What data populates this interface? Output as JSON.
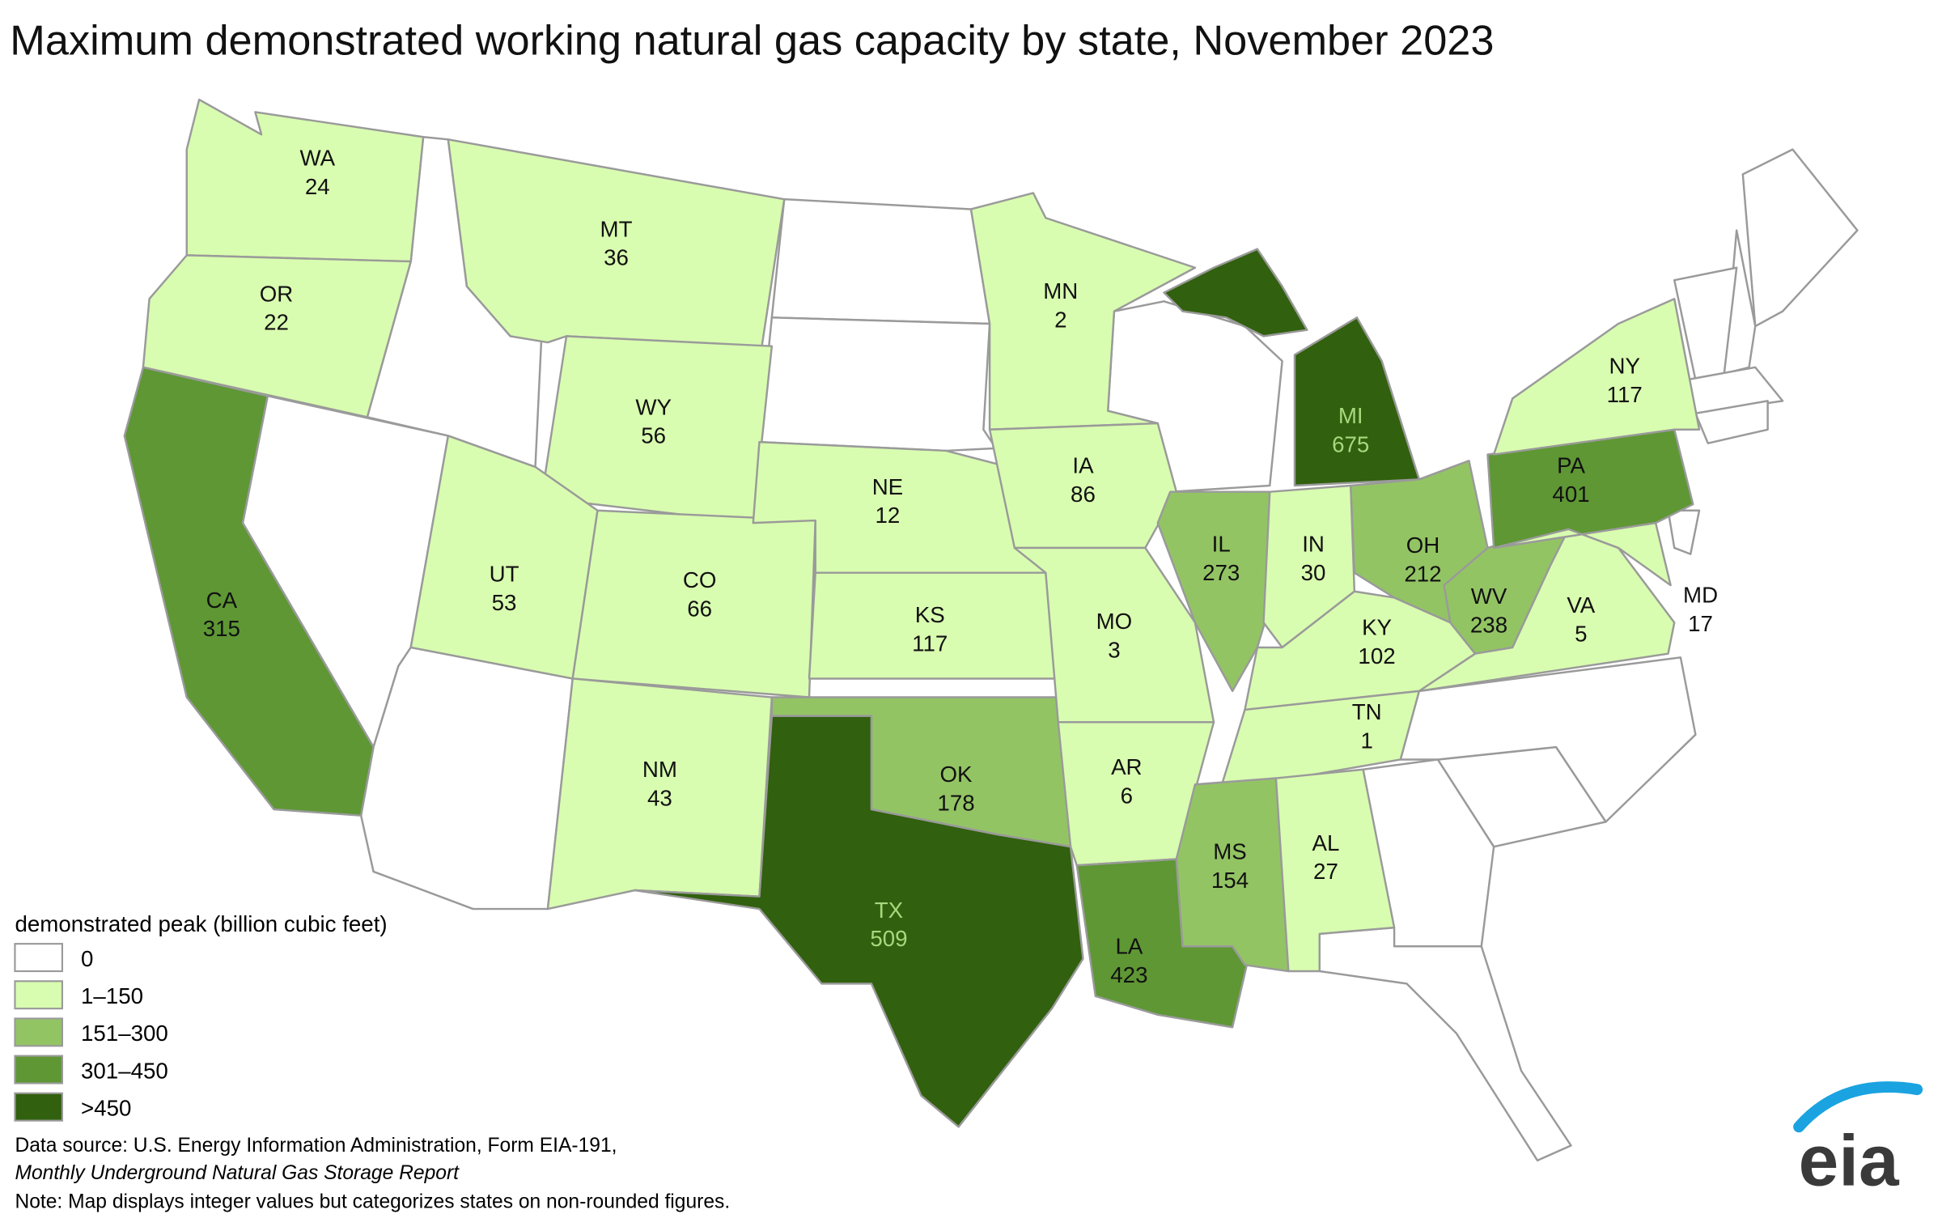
{
  "title": "Maximum demonstrated working natural gas capacity by state, November 2023",
  "legend": {
    "title": "demonstrated peak (billion cubic feet)",
    "classes": [
      {
        "label": "0",
        "color": "#ffffff"
      },
      {
        "label": "1–150",
        "color": "#d9fdb0"
      },
      {
        "label": "151–300",
        "color": "#93c464"
      },
      {
        "label": "301–450",
        "color": "#5e9734"
      },
      {
        "label": ">450",
        "color": "#31600e"
      }
    ]
  },
  "states": [
    {
      "abbr": "WA",
      "value": 24,
      "color": "#d9fdb0"
    },
    {
      "abbr": "OR",
      "value": 22,
      "color": "#d9fdb0"
    },
    {
      "abbr": "CA",
      "value": 315,
      "color": "#5e9734"
    },
    {
      "abbr": "MT",
      "value": 36,
      "color": "#d9fdb0"
    },
    {
      "abbr": "WY",
      "value": 56,
      "color": "#d9fdb0"
    },
    {
      "abbr": "UT",
      "value": 53,
      "color": "#d9fdb0"
    },
    {
      "abbr": "CO",
      "value": 66,
      "color": "#d9fdb0"
    },
    {
      "abbr": "NM",
      "value": 43,
      "color": "#d9fdb0"
    },
    {
      "abbr": "NE",
      "value": 12,
      "color": "#d9fdb0"
    },
    {
      "abbr": "KS",
      "value": 117,
      "color": "#d9fdb0"
    },
    {
      "abbr": "OK",
      "value": 178,
      "color": "#93c464"
    },
    {
      "abbr": "TX",
      "value": 509,
      "color": "#31600e",
      "label_color": "#a9d77e"
    },
    {
      "abbr": "MN",
      "value": 2,
      "color": "#d9fdb0"
    },
    {
      "abbr": "IA",
      "value": 86,
      "color": "#d9fdb0"
    },
    {
      "abbr": "MO",
      "value": 3,
      "color": "#d9fdb0"
    },
    {
      "abbr": "AR",
      "value": 6,
      "color": "#d9fdb0"
    },
    {
      "abbr": "LA",
      "value": 423,
      "color": "#5e9734"
    },
    {
      "abbr": "IL",
      "value": 273,
      "color": "#93c464"
    },
    {
      "abbr": "MI",
      "value": 675,
      "color": "#31600e",
      "label_color": "#a9d77e"
    },
    {
      "abbr": "IN",
      "value": 30,
      "color": "#d9fdb0"
    },
    {
      "abbr": "OH",
      "value": 212,
      "color": "#93c464"
    },
    {
      "abbr": "KY",
      "value": 102,
      "color": "#d9fdb0"
    },
    {
      "abbr": "TN",
      "value": 1,
      "color": "#d9fdb0"
    },
    {
      "abbr": "MS",
      "value": 154,
      "color": "#93c464"
    },
    {
      "abbr": "AL",
      "value": 27,
      "color": "#d9fdb0"
    },
    {
      "abbr": "WV",
      "value": 238,
      "color": "#93c464"
    },
    {
      "abbr": "VA",
      "value": 5,
      "color": "#d9fdb0"
    },
    {
      "abbr": "PA",
      "value": 401,
      "color": "#5e9734"
    },
    {
      "abbr": "NY",
      "value": 117,
      "color": "#d9fdb0"
    },
    {
      "abbr": "MD",
      "value": 17,
      "color": "#d9fdb0"
    }
  ],
  "source": {
    "line1": "Data source: U.S. Energy Information Administration, Form EIA-191,",
    "line2": "Monthly Underground Natural Gas Storage Report"
  },
  "note": "Note: Map displays integer values but categorizes states on non-rounded figures.",
  "logo": "eia"
}
